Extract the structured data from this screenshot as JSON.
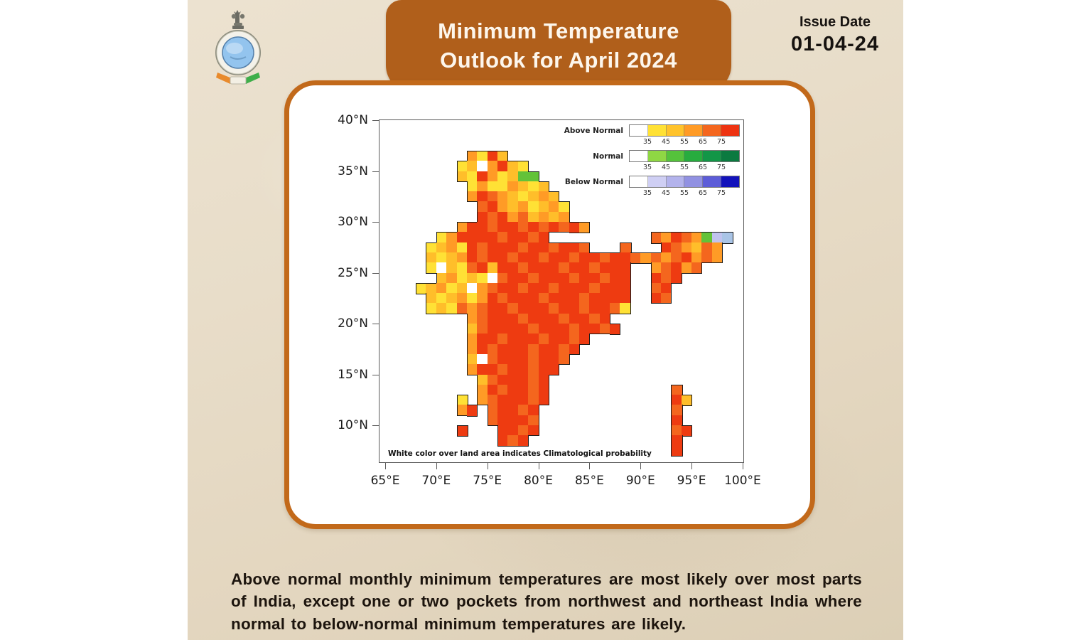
{
  "header": {
    "title_line1": "Minimum Temperature",
    "title_line2": "Outlook for April 2024",
    "issue_date_label": "Issue Date",
    "issue_date": "01-04-24"
  },
  "map": {
    "note": "White color over land area indicates Climatological probability",
    "y_ticks": [
      "40°N",
      "35°N",
      "30°N",
      "25°N",
      "20°N",
      "15°N",
      "10°N"
    ],
    "x_ticks": [
      "65°E",
      "70°E",
      "75°E",
      "80°E",
      "85°E",
      "90°E",
      "95°E",
      "100°E"
    ],
    "legend": {
      "tick_values": [
        "35",
        "45",
        "55",
        "65",
        "75"
      ],
      "rows": [
        {
          "label": "Above Normal",
          "colors": [
            "#FFFFFF",
            "#FFE135",
            "#FFC32B",
            "#FF9B26",
            "#F4661E",
            "#EE3311"
          ]
        },
        {
          "label": "Normal",
          "colors": [
            "#FFFFFF",
            "#8FD744",
            "#55C23C",
            "#27AC3F",
            "#129647",
            "#0B7A40"
          ]
        },
        {
          "label": "Below Normal",
          "colors": [
            "#FFFFFF",
            "#CFCFF4",
            "#B3B3EC",
            "#9191E2",
            "#5C5CD8",
            "#1212BB"
          ]
        }
      ]
    },
    "grid": {
      "lon_start": 67,
      "lat_start": 37,
      "cell_deg": 1,
      "palette": {
        "Y": "#FFE135",
        "A": "#FFBE2A",
        "O": "#FF9B26",
        "o": "#F4661E",
        "R": "#EE3B11",
        "W": "#FFFFFF",
        "G": "#63C239",
        "L": "#C0C3EF",
        "B": "#A9C4E6"
      },
      "rows": [
        "......OYRA......................",
        ".....YAWORAY....................",
        ".....AYROYAGG...................",
        "......YOYYOAYA..................",
        "......ORoOAYAOA.................",
        ".......oROAOYAOY................",
        ".......RoROoAOAO................",
        ".....ORRoRRoRoRoRO..............",
        "...YORRRRoRRoR..........oORoOGLB",
        "..YAOYRoRRRoRRoRRo...o...RoOAoO.",
        "..AYAORoRRoRRoRRoRRoRRoOoOoROoO.",
        "..YWAYoRARRoRRRoRRoRRR..OoROo...",
        "...AOYAYWoRRoRRRoRRoRR..RoR.....",
        ".YAOYAWOoRRoRRoRRRoRRR..oR......",
        "..AYAOYORoRRRoRRRoRRRR..Ro......",
        "..YAYoOoRRoRRRoRRoRRoY..........",
        "......OoRRRoRRRoRRoR............",
        "......AoRRRRoRRRoRRoR...........",
        "......ORRoRRRoRRoR..............",
        "......ORoRRRoRRoR...............",
        "......AWoRRRoRRo................",
        "......ORRoRRoRR.................",
        ".......AoRRRoR..................",
        ".......ORoRRoR............o.....",
        ".....Y.OoRRRoR............RA....",
        ".....OR.oRRoR.............o.....",
        "........oRRRo.............R.....",
        ".....R...RRoR.............oR....",
        ".........RoR..............R.....",
        "..........................R....."
      ]
    }
  },
  "footer": {
    "text": "Above normal monthly minimum temperatures are most likely over most parts of India, except one or two pockets from northwest and northeast India where normal to below-normal minimum temperatures are likely."
  }
}
